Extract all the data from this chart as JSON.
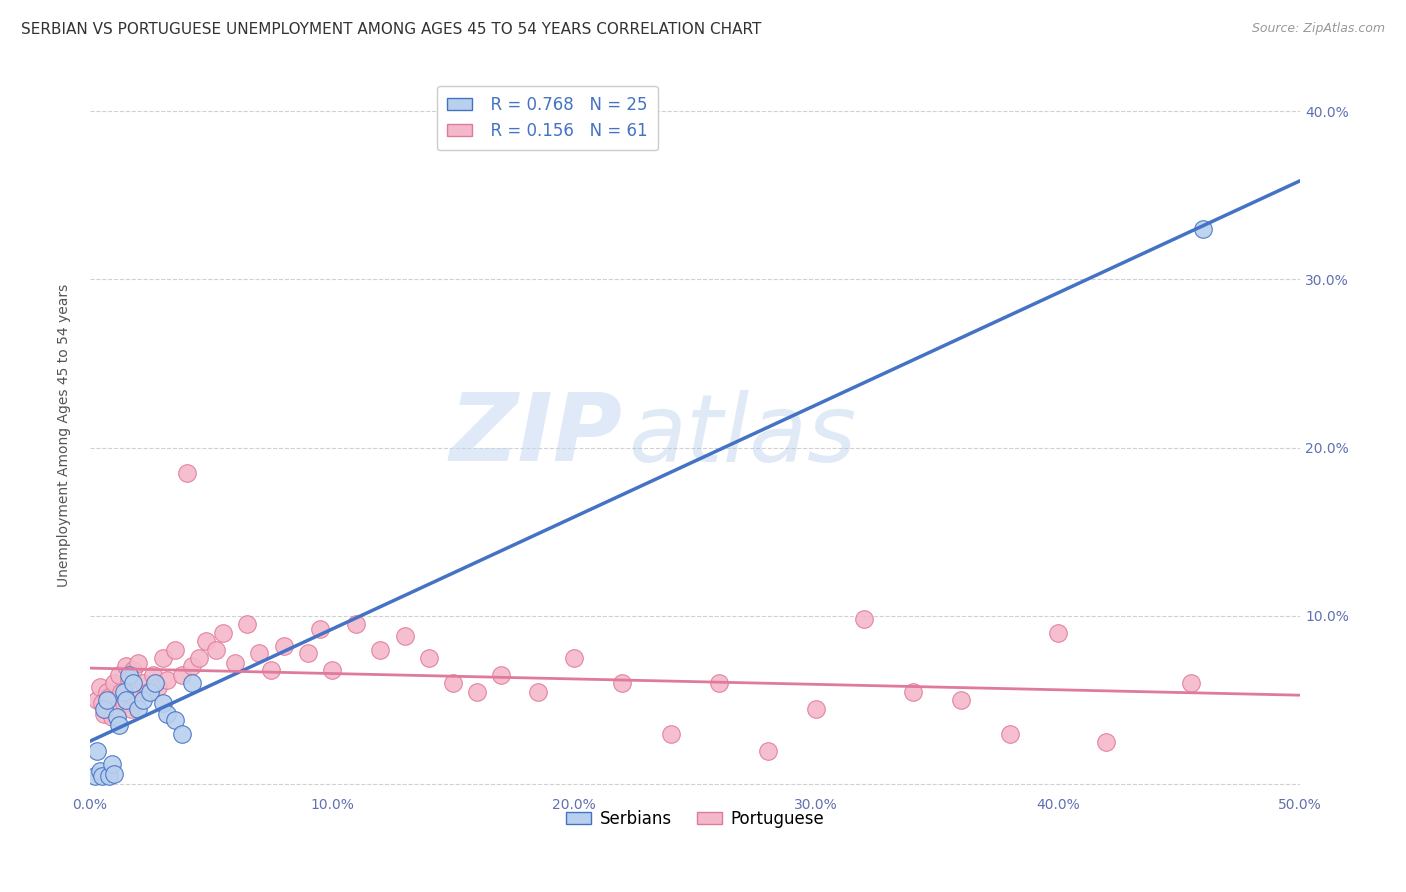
{
  "title": "SERBIAN VS PORTUGUESE UNEMPLOYMENT AMONG AGES 45 TO 54 YEARS CORRELATION CHART",
  "source": "Source: ZipAtlas.com",
  "ylabel": "Unemployment Among Ages 45 to 54 years",
  "xlim": [
    0.0,
    0.5
  ],
  "ylim": [
    -0.005,
    0.42
  ],
  "xticks": [
    0.0,
    0.1,
    0.2,
    0.3,
    0.4,
    0.5
  ],
  "yticks": [
    0.0,
    0.1,
    0.2,
    0.3,
    0.4
  ],
  "xtick_labels": [
    "0.0%",
    "10.0%",
    "20.0%",
    "30.0%",
    "40.0%",
    "50.0%"
  ],
  "left_ytick_labels": [
    "",
    "",
    "",
    "",
    ""
  ],
  "right_ytick_labels": [
    "",
    "10.0%",
    "20.0%",
    "30.0%",
    "40.0%"
  ],
  "background_color": "#ffffff",
  "grid_color": "#d0d0d0",
  "watermark_zip": "ZIP",
  "watermark_atlas": "atlas",
  "serbian_face_color": "#b8d0ee",
  "serbian_edge_color": "#4472c4",
  "portuguese_face_color": "#f5b8cb",
  "portuguese_edge_color": "#e07a9a",
  "serbian_line_color": "#4472c4",
  "portuguese_line_color": "#e07a9a",
  "legend_serbian_R": "R = 0.768",
  "legend_serbian_N": "N = 25",
  "legend_portuguese_R": "R = 0.156",
  "legend_portuguese_N": "N = 61",
  "serbian_x": [
    0.002,
    0.003,
    0.004,
    0.005,
    0.006,
    0.007,
    0.008,
    0.009,
    0.01,
    0.011,
    0.012,
    0.014,
    0.015,
    0.016,
    0.018,
    0.02,
    0.022,
    0.025,
    0.027,
    0.03,
    0.032,
    0.035,
    0.038,
    0.042,
    0.46
  ],
  "serbian_y": [
    0.005,
    0.02,
    0.008,
    0.005,
    0.045,
    0.05,
    0.005,
    0.012,
    0.006,
    0.04,
    0.035,
    0.055,
    0.05,
    0.065,
    0.06,
    0.045,
    0.05,
    0.055,
    0.06,
    0.048,
    0.042,
    0.038,
    0.03,
    0.06,
    0.33
  ],
  "portuguese_x": [
    0.003,
    0.004,
    0.005,
    0.006,
    0.007,
    0.008,
    0.009,
    0.01,
    0.011,
    0.012,
    0.013,
    0.014,
    0.015,
    0.016,
    0.017,
    0.018,
    0.019,
    0.02,
    0.022,
    0.024,
    0.026,
    0.028,
    0.03,
    0.032,
    0.035,
    0.038,
    0.04,
    0.042,
    0.045,
    0.048,
    0.052,
    0.055,
    0.06,
    0.065,
    0.07,
    0.075,
    0.08,
    0.09,
    0.095,
    0.1,
    0.11,
    0.12,
    0.13,
    0.14,
    0.15,
    0.16,
    0.17,
    0.185,
    0.2,
    0.22,
    0.24,
    0.26,
    0.28,
    0.3,
    0.32,
    0.34,
    0.36,
    0.38,
    0.4,
    0.42,
    0.455
  ],
  "portuguese_y": [
    0.05,
    0.058,
    0.048,
    0.042,
    0.055,
    0.052,
    0.04,
    0.06,
    0.045,
    0.065,
    0.055,
    0.048,
    0.07,
    0.062,
    0.045,
    0.068,
    0.05,
    0.072,
    0.06,
    0.055,
    0.065,
    0.058,
    0.075,
    0.062,
    0.08,
    0.065,
    0.185,
    0.07,
    0.075,
    0.085,
    0.08,
    0.09,
    0.072,
    0.095,
    0.078,
    0.068,
    0.082,
    0.078,
    0.092,
    0.068,
    0.095,
    0.08,
    0.088,
    0.075,
    0.06,
    0.055,
    0.065,
    0.055,
    0.075,
    0.06,
    0.03,
    0.06,
    0.02,
    0.045,
    0.098,
    0.055,
    0.05,
    0.03,
    0.09,
    0.025,
    0.06
  ],
  "title_fontsize": 11,
  "axis_fontsize": 10,
  "tick_fontsize": 10,
  "legend_fontsize": 12
}
